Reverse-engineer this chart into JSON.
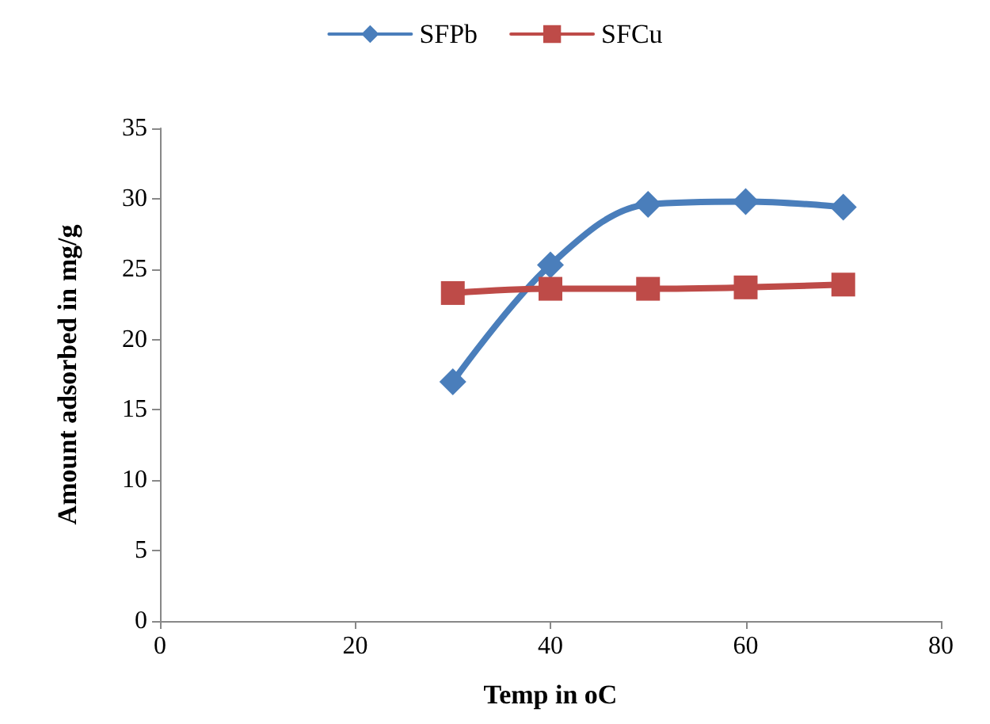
{
  "chart_data": {
    "type": "line",
    "xlabel": "Temp in oC",
    "ylabel": "Amount adsorbed in mg/g",
    "x": [
      30,
      40,
      50,
      60,
      70
    ],
    "series": [
      {
        "name": "SFPb",
        "color": "#4a7ebb",
        "marker": "diamond",
        "values": [
          17.0,
          25.3,
          29.6,
          29.8,
          29.4
        ]
      },
      {
        "name": "SFCu",
        "color": "#be4b48",
        "marker": "square",
        "values": [
          23.3,
          23.6,
          23.6,
          23.7,
          23.9
        ]
      }
    ],
    "xlim": [
      0,
      80
    ],
    "xticks": [
      0,
      20,
      40,
      60,
      80
    ],
    "ylim": [
      0,
      35
    ],
    "yticks": [
      0,
      5,
      10,
      15,
      20,
      25,
      30,
      35
    ],
    "grid": false,
    "legend": "top"
  }
}
